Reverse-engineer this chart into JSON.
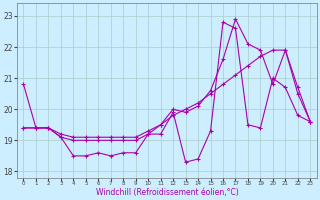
{
  "xlabel": "Windchill (Refroidissement éolien,°C)",
  "background_color": "#cceeff",
  "grid_color": "#aacccc",
  "line_color": "#aa00aa",
  "x_hours": [
    0,
    1,
    2,
    3,
    4,
    5,
    6,
    7,
    8,
    9,
    10,
    11,
    12,
    13,
    14,
    15,
    16,
    17,
    18,
    19,
    20,
    21,
    22,
    23
  ],
  "series1": [
    20.8,
    19.4,
    19.4,
    19.1,
    18.5,
    18.5,
    18.6,
    18.5,
    18.6,
    18.6,
    19.2,
    19.2,
    19.9,
    18.3,
    18.4,
    19.3,
    22.8,
    22.6,
    19.5,
    19.4,
    21.0,
    20.7,
    19.8,
    19.6
  ],
  "series2": [
    19.4,
    19.4,
    19.4,
    19.2,
    19.1,
    19.1,
    19.1,
    19.1,
    19.1,
    19.1,
    19.3,
    19.5,
    19.8,
    20.0,
    20.2,
    20.5,
    20.8,
    21.1,
    21.4,
    21.7,
    21.9,
    21.9,
    20.5,
    19.6
  ],
  "series3": [
    19.4,
    19.4,
    19.4,
    19.1,
    19.0,
    19.0,
    19.0,
    19.0,
    19.0,
    19.0,
    19.2,
    19.5,
    20.0,
    19.9,
    20.1,
    20.6,
    21.6,
    22.9,
    22.1,
    21.9,
    20.8,
    21.9,
    20.7,
    19.6
  ],
  "ylim": [
    17.8,
    23.4
  ],
  "yticks": [
    18,
    19,
    20,
    21,
    22,
    23
  ]
}
